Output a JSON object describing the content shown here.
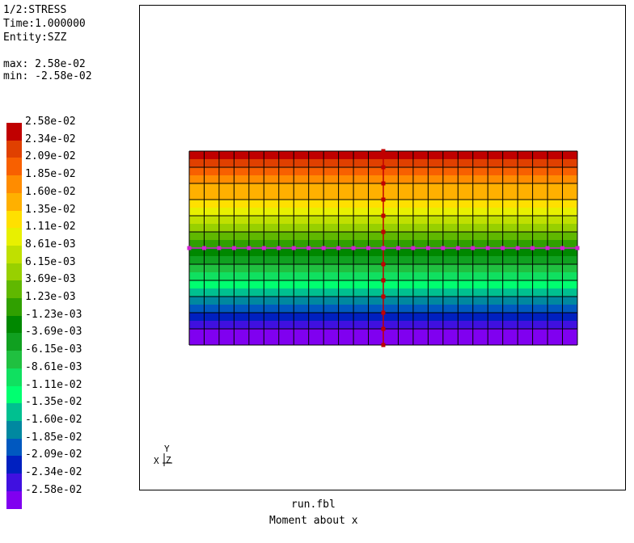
{
  "header": {
    "line1": "1/2:STRESS",
    "line2": "Time:1.000000",
    "line3": "Entity:SZZ",
    "max": "max: 2.58e-02",
    "min": "min: -2.58e-02"
  },
  "legend": [
    {
      "label": "2.58e-02",
      "color": "#c00000"
    },
    {
      "label": "2.34e-02",
      "color": "#e04000"
    },
    {
      "label": "2.09e-02",
      "color": "#f86000"
    },
    {
      "label": "1.85e-02",
      "color": "#ff8c00"
    },
    {
      "label": "1.60e-02",
      "color": "#ffb000"
    },
    {
      "label": "1.35e-02",
      "color": "#ffe000"
    },
    {
      "label": "1.11e-02",
      "color": "#e8f000"
    },
    {
      "label": "8.61e-03",
      "color": "#c0e000"
    },
    {
      "label": "6.15e-03",
      "color": "#98d000"
    },
    {
      "label": "3.69e-03",
      "color": "#60b800"
    },
    {
      "label": "1.23e-03",
      "color": "#30a000"
    },
    {
      "label": "-1.23e-03",
      "color": "#008800"
    },
    {
      "label": "-3.69e-03",
      "color": "#10a020"
    },
    {
      "label": "-6.15e-03",
      "color": "#20c040"
    },
    {
      "label": "-8.61e-03",
      "color": "#10e060"
    },
    {
      "label": "-1.11e-02",
      "color": "#00ff70"
    },
    {
      "label": "-1.35e-02",
      "color": "#00c090"
    },
    {
      "label": "-1.60e-02",
      "color": "#0088a0"
    },
    {
      "label": "-1.85e-02",
      "color": "#0058c0"
    },
    {
      "label": "-2.09e-02",
      "color": "#0020c0"
    },
    {
      "label": "-2.34e-02",
      "color": "#4010e0"
    },
    {
      "label": "-2.58e-02",
      "color": "#8000f0"
    }
  ],
  "footer": {
    "filename": "run.fbl",
    "caption": "Moment about x"
  },
  "triad": {
    "x": "X",
    "y": "Y",
    "z": "Z"
  },
  "colors": {
    "mesh_line": "#000000",
    "vertical_path_marker": "#c00000",
    "horizontal_path_marker": "#d020d0"
  }
}
